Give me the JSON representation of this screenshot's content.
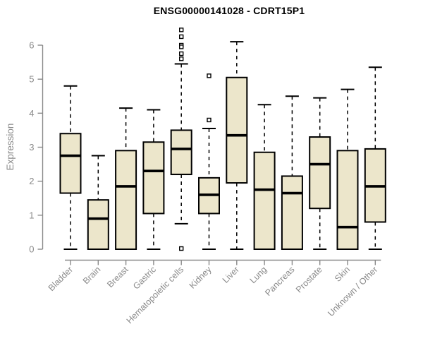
{
  "chart_data": {
    "type": "boxplot",
    "title": "ENSG00000141028 - CDRT15P1",
    "ylabel": "Expression",
    "ylim": [
      0,
      6
    ],
    "yticks": [
      0,
      1,
      2,
      3,
      4,
      5,
      6
    ],
    "grid": false,
    "legend": null,
    "colors": {
      "box_fill": "#ece6cb",
      "box_stroke": "#000000",
      "median": "#000000",
      "whisker": "#000000",
      "axis": "#8a8a8a",
      "tick_label": "#8a8a8a",
      "title": "#000000",
      "background": "#ffffff"
    },
    "categories": [
      "Bladder",
      "Brain",
      "Breast",
      "Gastric",
      "Hematopoietic cells",
      "Kidney",
      "Liver",
      "Lung",
      "Pancreas",
      "Prostate",
      "Skin",
      "Unknown / Other"
    ],
    "boxes": [
      {
        "category": "Bladder",
        "whisker_low": 0,
        "q1": 1.65,
        "median": 2.75,
        "q3": 3.4,
        "whisker_high": 4.8,
        "outliers": []
      },
      {
        "category": "Brain",
        "whisker_low": 0,
        "q1": 0,
        "median": 0.9,
        "q3": 1.45,
        "whisker_high": 2.75,
        "outliers": []
      },
      {
        "category": "Breast",
        "whisker_low": 0,
        "q1": 0,
        "median": 1.85,
        "q3": 2.9,
        "whisker_high": 4.15,
        "outliers": []
      },
      {
        "category": "Gastric",
        "whisker_low": 0,
        "q1": 1.05,
        "median": 2.3,
        "q3": 3.15,
        "whisker_high": 4.1,
        "outliers": []
      },
      {
        "category": "Hematopoietic cells",
        "whisker_low": 0.75,
        "q1": 2.2,
        "median": 2.95,
        "q3": 3.5,
        "whisker_high": 5.45,
        "outliers": [
          6.45,
          6.25,
          6.0,
          5.95,
          5.75,
          5.6,
          0.02
        ]
      },
      {
        "category": "Kidney",
        "whisker_low": 0,
        "q1": 1.05,
        "median": 1.6,
        "q3": 2.1,
        "whisker_high": 3.55,
        "outliers": [
          5.1,
          3.8
        ]
      },
      {
        "category": "Liver",
        "whisker_low": 0,
        "q1": 1.95,
        "median": 3.35,
        "q3": 5.05,
        "whisker_high": 6.1,
        "outliers": []
      },
      {
        "category": "Lung",
        "whisker_low": 0,
        "q1": 0,
        "median": 1.75,
        "q3": 2.85,
        "whisker_high": 4.25,
        "outliers": []
      },
      {
        "category": "Pancreas",
        "whisker_low": 0,
        "q1": 0,
        "median": 1.65,
        "q3": 2.15,
        "whisker_high": 4.5,
        "outliers": []
      },
      {
        "category": "Prostate",
        "whisker_low": 0,
        "q1": 1.2,
        "median": 2.5,
        "q3": 3.3,
        "whisker_high": 4.45,
        "outliers": []
      },
      {
        "category": "Skin",
        "whisker_low": 0,
        "q1": 0,
        "median": 0.65,
        "q3": 2.9,
        "whisker_high": 4.7,
        "outliers": []
      },
      {
        "category": "Unknown / Other",
        "whisker_low": 0,
        "q1": 0.8,
        "median": 1.85,
        "q3": 2.95,
        "whisker_high": 5.35,
        "outliers": []
      }
    ]
  }
}
